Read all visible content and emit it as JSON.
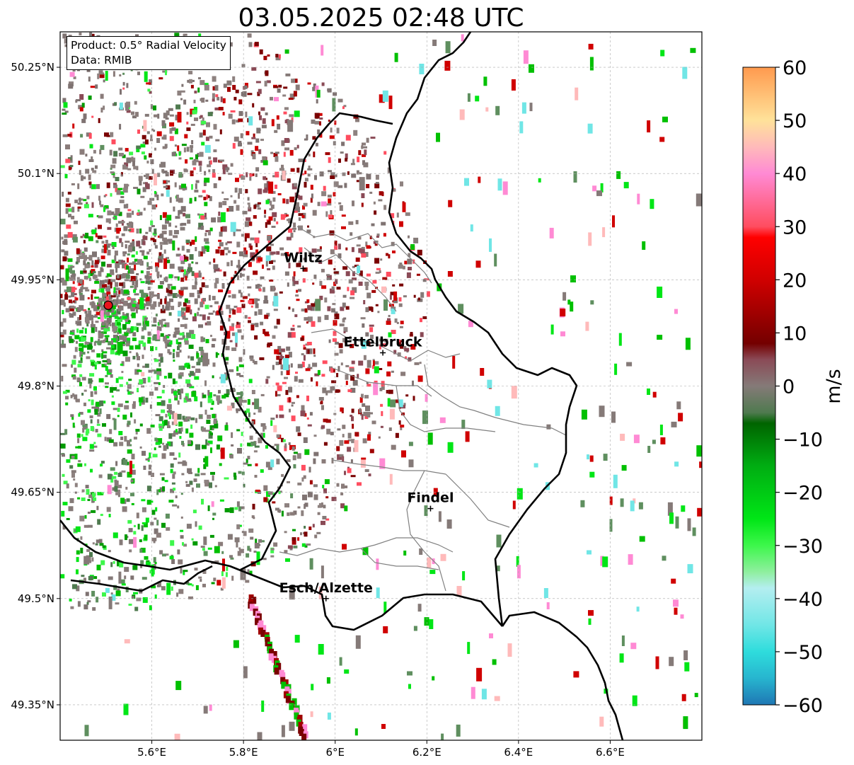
{
  "title": "03.05.2025 02:48 UTC",
  "info_box": {
    "product": "Product: 0.5° Radial Velocity",
    "data_source": "Data: RMIB"
  },
  "map": {
    "lon_range": [
      5.4,
      6.8
    ],
    "lat_range": [
      49.3,
      50.3
    ],
    "lon_ticks": [
      {
        "value": 5.6,
        "label": "5.6°E"
      },
      {
        "value": 5.8,
        "label": "5.8°E"
      },
      {
        "value": 6.0,
        "label": "6°E"
      },
      {
        "value": 6.2,
        "label": "6.2°E"
      },
      {
        "value": 6.4,
        "label": "6.4°E"
      },
      {
        "value": 6.6,
        "label": "6.6°E"
      }
    ],
    "lat_ticks": [
      {
        "value": 49.35,
        "label": "49.35°N"
      },
      {
        "value": 49.5,
        "label": "49.5°N"
      },
      {
        "value": 49.65,
        "label": "49.65°N"
      },
      {
        "value": 49.8,
        "label": "49.8°N"
      },
      {
        "value": 49.95,
        "label": "49.95°N"
      },
      {
        "value": 50.1,
        "label": "50.1°N"
      },
      {
        "value": 50.25,
        "label": "50.25°N"
      }
    ],
    "gridlines": true,
    "radar_site": {
      "lon": 5.505,
      "lat": 49.914,
      "color": "#e8141d"
    },
    "cities": [
      {
        "name": "Wiltz",
        "lon": 5.93,
        "lat": 49.966
      },
      {
        "name": "Ettelbruck",
        "lon": 6.104,
        "lat": 49.847
      },
      {
        "name": "Findel",
        "lon": 6.208,
        "lat": 49.627
      },
      {
        "name": "Esch/Alzette",
        "lon": 5.98,
        "lat": 49.5
      }
    ]
  },
  "colorbar": {
    "label": "m/s",
    "min": -60,
    "max": 60,
    "ticks": [
      {
        "value": 60,
        "label": "60"
      },
      {
        "value": 50,
        "label": "50"
      },
      {
        "value": 40,
        "label": "40"
      },
      {
        "value": 30,
        "label": "30"
      },
      {
        "value": 20,
        "label": "20"
      },
      {
        "value": 10,
        "label": "10"
      },
      {
        "value": 0,
        "label": "0"
      },
      {
        "value": -10,
        "label": "−10"
      },
      {
        "value": -20,
        "label": "−20"
      },
      {
        "value": -30,
        "label": "−30"
      },
      {
        "value": -40,
        "label": "−40"
      },
      {
        "value": -50,
        "label": "−50"
      },
      {
        "value": -60,
        "label": "−60"
      }
    ],
    "stops": [
      {
        "value": -60,
        "color": "#1f77b4"
      },
      {
        "value": -55,
        "color": "#27b5cf"
      },
      {
        "value": -50,
        "color": "#2edcdc"
      },
      {
        "value": -45,
        "color": "#70e6e6"
      },
      {
        "value": -38,
        "color": "#b4eef0"
      },
      {
        "value": -35,
        "color": "#8fef9f"
      },
      {
        "value": -30,
        "color": "#3df74b"
      },
      {
        "value": -25,
        "color": "#00e616"
      },
      {
        "value": -15,
        "color": "#00ad12"
      },
      {
        "value": -7,
        "color": "#006400"
      },
      {
        "value": -5,
        "color": "#4f7a4f"
      },
      {
        "value": 0,
        "color": "#857a78"
      },
      {
        "value": 5,
        "color": "#8a4a56"
      },
      {
        "value": 8,
        "color": "#740000"
      },
      {
        "value": 20,
        "color": "#d00000"
      },
      {
        "value": 28,
        "color": "#ff0000"
      },
      {
        "value": 30,
        "color": "#ff4d5f"
      },
      {
        "value": 40,
        "color": "#ff8ad4"
      },
      {
        "value": 45,
        "color": "#ffbaba"
      },
      {
        "value": 50,
        "color": "#ffe29a"
      },
      {
        "value": 60,
        "color": "#ff9a4e"
      }
    ]
  }
}
